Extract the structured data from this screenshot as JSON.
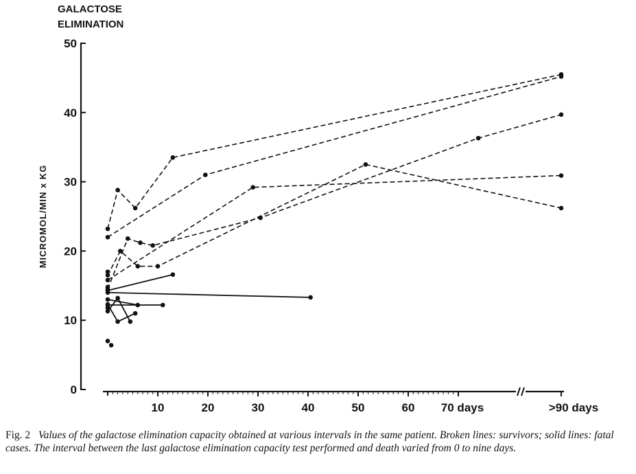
{
  "chart_data": {
    "type": "line",
    "title_lines": [
      "GALACTOSE",
      "ELIMINATION"
    ],
    "ylabel": "MICROMOL/MIN x KG",
    "xlabel": "",
    "ylim": [
      0,
      50
    ],
    "y_ticks": [
      "0",
      "10",
      "20",
      "30",
      "40",
      "50"
    ],
    "x_tick_labels": [
      "10",
      "20",
      "30",
      "40",
      "50",
      "60",
      "70 days",
      ">90 days"
    ],
    "x_tick_values": [
      10,
      20,
      30,
      40,
      50,
      60,
      70,
      90
    ],
    "axis_break_between": [
      70,
      90
    ],
    "grid": false,
    "series": [
      {
        "style": "dashed",
        "points": [
          [
            0,
            23.2
          ],
          [
            2,
            28.8
          ],
          [
            5.5,
            26.2
          ],
          [
            13,
            33.5
          ],
          [
            90,
            45.5
          ]
        ]
      },
      {
        "style": "dashed",
        "points": [
          [
            0,
            22.0
          ],
          [
            19.5,
            31.0
          ],
          [
            90,
            45.2
          ]
        ]
      },
      {
        "style": "dashed",
        "points": [
          [
            0,
            16.5
          ],
          [
            2.5,
            20.0
          ],
          [
            6,
            17.8
          ],
          [
            10,
            17.8
          ],
          [
            51.5,
            32.5
          ],
          [
            90,
            26.2
          ]
        ]
      },
      {
        "style": "dashed",
        "points": [
          [
            0,
            14.5
          ],
          [
            4,
            21.8
          ],
          [
            6.5,
            21.2
          ],
          [
            9,
            20.8
          ],
          [
            30.5,
            24.8
          ],
          [
            74,
            36.3
          ],
          [
            90,
            39.7
          ]
        ]
      },
      {
        "style": "dashed",
        "points": [
          [
            0,
            15.8
          ],
          [
            29,
            29.2
          ],
          [
            90,
            30.9
          ]
        ]
      },
      {
        "style": "solid",
        "points": [
          [
            0,
            14.3
          ],
          [
            13,
            16.6
          ]
        ]
      },
      {
        "style": "solid",
        "points": [
          [
            0,
            14.0
          ],
          [
            40.5,
            13.3
          ]
        ]
      },
      {
        "style": "solid",
        "points": [
          [
            0,
            12.2
          ],
          [
            11,
            12.2
          ]
        ]
      },
      {
        "style": "solid",
        "points": [
          [
            0,
            11.3
          ],
          [
            2,
            13.2
          ],
          [
            4.5,
            9.8
          ]
        ]
      },
      {
        "style": "solid",
        "points": [
          [
            0,
            12.3
          ],
          [
            2,
            9.8
          ],
          [
            5.5,
            11.0
          ]
        ]
      },
      {
        "style": "solid",
        "points": [
          [
            0,
            13.0
          ],
          [
            6,
            12.2
          ]
        ]
      }
    ],
    "isolated_points": [
      [
        0,
        17.0
      ],
      [
        0,
        14.8
      ],
      [
        0,
        11.8
      ],
      [
        0,
        7.0
      ],
      [
        0.7,
        6.4
      ]
    ]
  },
  "caption": {
    "figure_label": "Fig. 2",
    "text": "Values of the galactose elimination capacity obtained at various intervals in the same patient. Broken lines: survivors; solid lines: fatal cases. The interval between the last galactose elimination capacity test performed and death varied from 0 to nine days."
  }
}
